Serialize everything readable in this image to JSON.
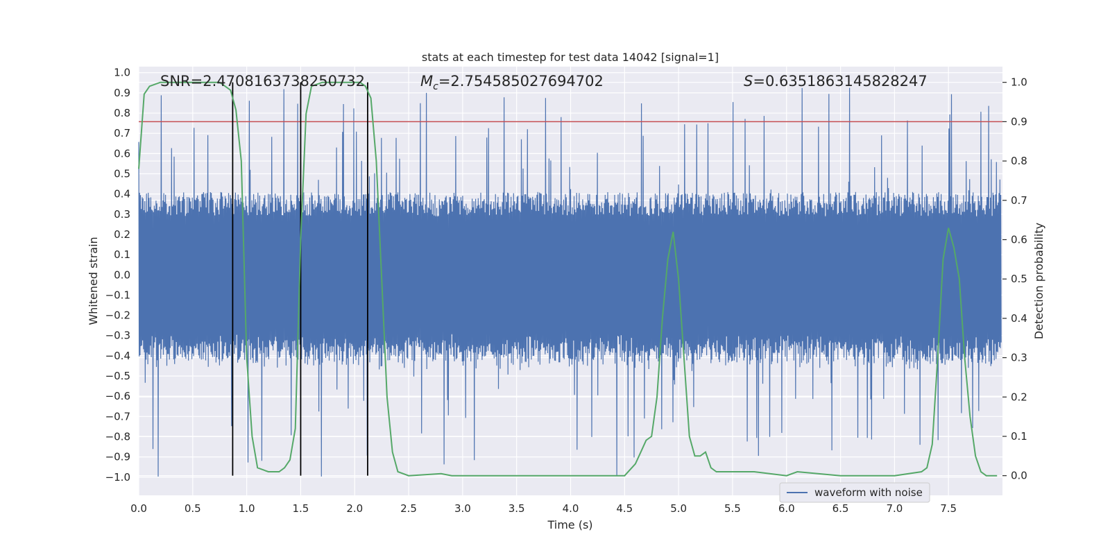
{
  "chart_data": {
    "type": "line",
    "title": "stats at each timestep for test data 14042 [signal=1]",
    "xlabel": "Time (s)",
    "ylabel_left": "Whitened strain",
    "ylabel_right": "Detection probability",
    "xlim": [
      0.0,
      8.0
    ],
    "ylim_left": [
      -1.09,
      1.03
    ],
    "ylim_right": [
      -0.05,
      1.04
    ],
    "x_ticks": [
      0.0,
      0.5,
      1.0,
      1.5,
      2.0,
      2.5,
      3.0,
      3.5,
      4.0,
      4.5,
      5.0,
      5.5,
      6.0,
      6.5,
      7.0,
      7.5
    ],
    "x_tick_labels": [
      "0.0",
      "0.5",
      "1.0",
      "1.5",
      "2.0",
      "2.5",
      "3.0",
      "3.5",
      "4.0",
      "4.5",
      "5.0",
      "5.5",
      "6.0",
      "6.5",
      "7.0",
      "7.5"
    ],
    "y_left_ticks": [
      1.0,
      0.9,
      0.8,
      0.7,
      0.6,
      0.5,
      0.4,
      0.3,
      0.2,
      0.1,
      0.0,
      -0.1,
      -0.2,
      -0.3,
      -0.4,
      -0.5,
      -0.6,
      -0.7,
      -0.8,
      -0.9,
      -1.0
    ],
    "y_left_tick_labels": [
      "1.0",
      "0.9",
      "0.8",
      "0.7",
      "0.6",
      "0.5",
      "0.4",
      "0.3",
      "0.2",
      "0.1",
      "0.0",
      "−0.1",
      "−0.2",
      "−0.3",
      "−0.4",
      "−0.5",
      "−0.6",
      "−0.7",
      "−0.8",
      "−0.9",
      "−1.0"
    ],
    "y_right_ticks": [
      1.0,
      0.9,
      0.8,
      0.7,
      0.6,
      0.5,
      0.4,
      0.3,
      0.2,
      0.1,
      0.0
    ],
    "y_right_tick_labels": [
      "1.0",
      "0.9",
      "0.8",
      "0.7",
      "0.6",
      "0.5",
      "0.4",
      "0.3",
      "0.2",
      "0.1",
      "0.0"
    ],
    "grid": true,
    "legend": {
      "placement": "lower-right",
      "entries": [
        "waveform with noise"
      ]
    },
    "annotations": {
      "snr": "SNR=2.4708163738250732",
      "mc_symbol": "M",
      "mc_sub": "c",
      "mc_value": "=2.754585027694702",
      "s_symbol": "S",
      "s_value": "=0.6351863145828247"
    },
    "threshold_right_axis": 0.9,
    "vertical_markers_x": [
      0.87,
      1.5,
      2.12
    ],
    "waveform": {
      "name": "waveform with noise",
      "sample_step": 0.004,
      "core_amplitude": 0.35,
      "spike_max": 0.93,
      "spike_min": -1.0
    },
    "probability_series": {
      "x": [
        0.0,
        0.05,
        0.1,
        0.2,
        0.3,
        0.4,
        0.5,
        0.6,
        0.7,
        0.75,
        0.8,
        0.85,
        0.9,
        0.95,
        1.0,
        1.05,
        1.1,
        1.2,
        1.3,
        1.35,
        1.4,
        1.45,
        1.5,
        1.55,
        1.6,
        1.7,
        1.8,
        1.9,
        2.0,
        2.05,
        2.1,
        2.15,
        2.2,
        2.25,
        2.3,
        2.35,
        2.4,
        2.5,
        2.8,
        2.9,
        3.3,
        3.6,
        4.0,
        4.1,
        4.5,
        4.6,
        4.65,
        4.7,
        4.75,
        4.8,
        4.85,
        4.9,
        4.95,
        5.0,
        5.05,
        5.1,
        5.15,
        5.2,
        5.25,
        5.3,
        5.35,
        5.4,
        5.5,
        5.6,
        5.7,
        6.0,
        6.1,
        6.5,
        7.0,
        7.25,
        7.3,
        7.35,
        7.4,
        7.45,
        7.5,
        7.55,
        7.6,
        7.65,
        7.7,
        7.75,
        7.8,
        7.85,
        7.95
      ],
      "y": [
        0.78,
        0.97,
        0.99,
        1.0,
        1.0,
        1.0,
        1.0,
        1.0,
        1.0,
        1.0,
        0.99,
        0.98,
        0.93,
        0.8,
        0.3,
        0.1,
        0.02,
        0.01,
        0.01,
        0.02,
        0.04,
        0.12,
        0.6,
        0.92,
        0.99,
        1.0,
        1.0,
        1.0,
        1.0,
        1.0,
        0.99,
        0.96,
        0.8,
        0.5,
        0.2,
        0.06,
        0.01,
        0.0,
        0.005,
        0.0,
        0.0,
        0.0,
        0.0,
        0.0,
        0.0,
        0.03,
        0.06,
        0.09,
        0.1,
        0.2,
        0.4,
        0.55,
        0.62,
        0.5,
        0.3,
        0.1,
        0.05,
        0.05,
        0.06,
        0.02,
        0.01,
        0.01,
        0.01,
        0.01,
        0.01,
        0.0,
        0.01,
        0.0,
        0.0,
        0.01,
        0.02,
        0.08,
        0.3,
        0.55,
        0.63,
        0.58,
        0.5,
        0.3,
        0.15,
        0.05,
        0.01,
        0.0,
        0.0
      ]
    }
  },
  "colors": {
    "plot_background": "#eaeaf2",
    "grid": "#ffffff",
    "waveform": "#4c72b0",
    "probability": "#55a868",
    "threshold": "#c44e52",
    "markers": "#000000",
    "text": "#262626"
  }
}
